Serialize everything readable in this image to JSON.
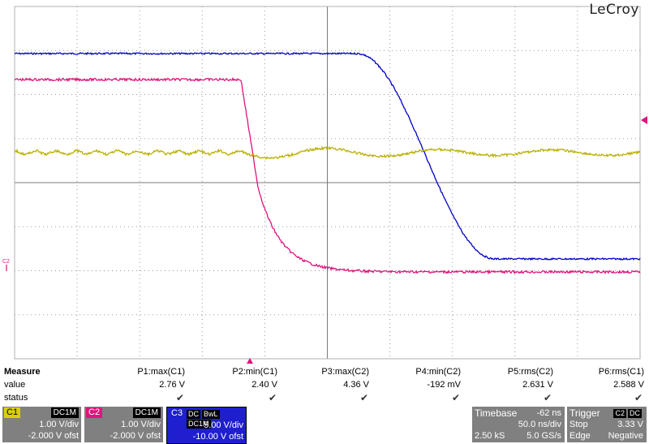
{
  "brand": "LeCroy",
  "scope": {
    "grid_divisions_x": 10,
    "grid_divisions_y": 8,
    "ground_marker_label": "C2",
    "colors": {
      "c1": "#b8b000",
      "c2": "#e0147c",
      "c3": "#0000cc",
      "grid": "#9a9a9a",
      "background": "#ffffff"
    }
  },
  "measure": {
    "header": "Measure",
    "row_value": "value",
    "row_status": "status",
    "params": [
      {
        "name": "P1:max(C1)",
        "value": "2.76 V"
      },
      {
        "name": "P2:min(C1)",
        "value": "2.40 V"
      },
      {
        "name": "P3:max(C2)",
        "value": "4.36 V"
      },
      {
        "name": "P4:min(C2)",
        "value": "-192 mV"
      },
      {
        "name": "P5:rms(C2)",
        "value": "2.631 V"
      },
      {
        "name": "P6:rms(C1)",
        "value": "2.588 V"
      }
    ],
    "status_icon": "checkmark-icon"
  },
  "channels": [
    {
      "name": "C1",
      "coupling": "DC1M",
      "vdiv": "1.00 V/div",
      "offset": "-2.000 V ofst",
      "tag_color": "#d8d000",
      "tag_text": "#000000"
    },
    {
      "name": "C2",
      "coupling": "DC1M",
      "vdiv": "1.00 V/div",
      "offset": "-2.000 V ofst",
      "tag_color": "#e0147c",
      "tag_text": "#ffffff"
    },
    {
      "name": "C3",
      "coupling": "DC1M",
      "extra": [
        "DC",
        "BwL"
      ],
      "vdiv": "5.00 V/div",
      "offset": "-10.00 V ofst",
      "tag_color": "#1f1fd0",
      "tag_text": "#ffffff"
    }
  ],
  "timebase": {
    "label": "Timebase",
    "delay": "-62 ns",
    "tdiv": "50.0 ns/div",
    "samples": "2.50 kS",
    "rate": "5.0 GS/s"
  },
  "trigger": {
    "label": "Trigger",
    "source": "C2",
    "coupling": "DC",
    "mode": "Stop",
    "level": "3.33 V",
    "type": "Edge",
    "slope": "Negative"
  }
}
